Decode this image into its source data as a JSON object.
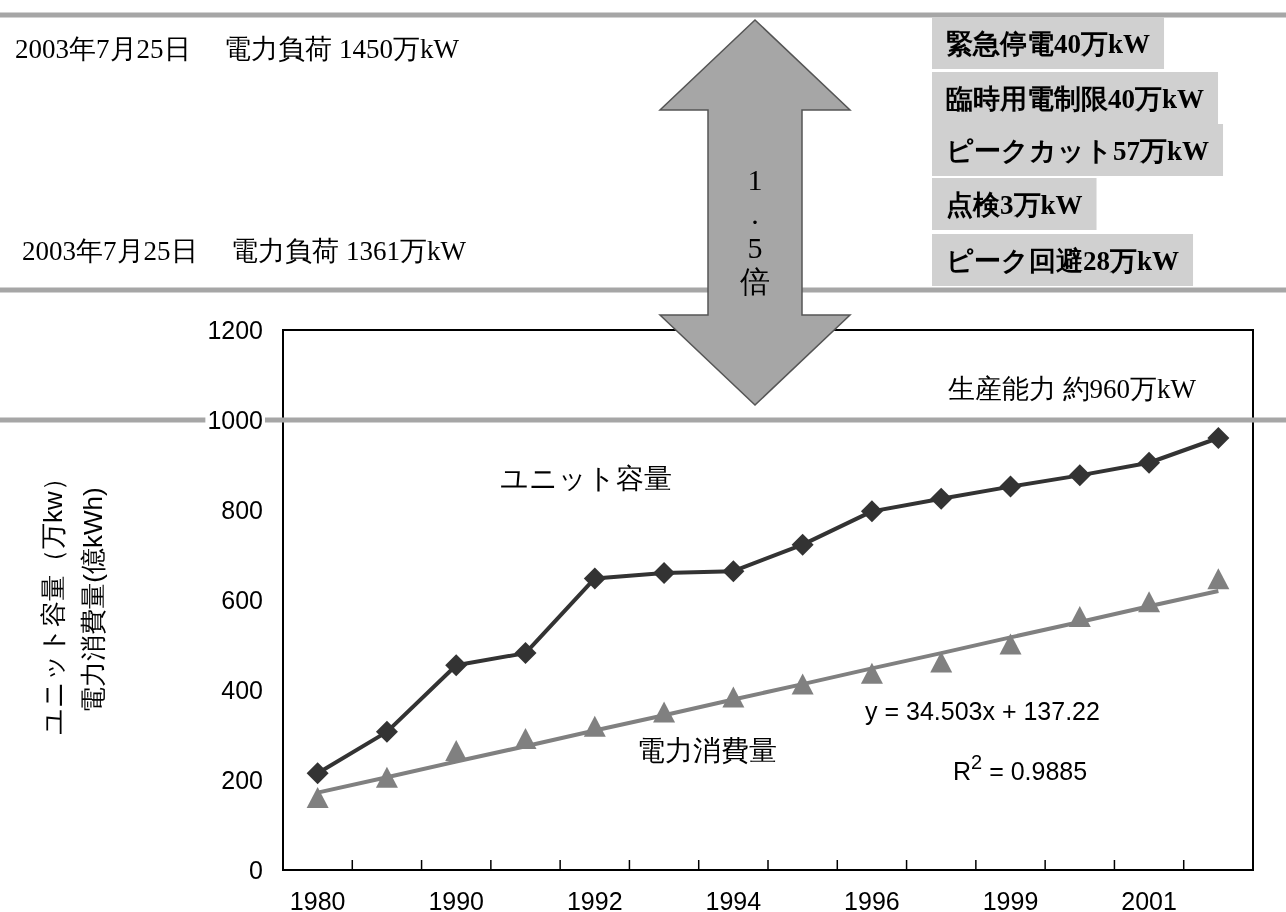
{
  "chart_data": {
    "type": "line",
    "ylabel": "電力消費量(億kWh)",
    "categories": [
      "1980",
      null,
      "1990",
      null,
      "1992",
      null,
      "1994",
      null,
      "1996",
      null,
      "1999",
      null,
      "2001",
      null
    ],
    "series": [
      {
        "name": "ユニット容量",
        "marker": "diamond",
        "color": "#333333",
        "values": [
          215,
          307,
          455,
          482,
          648,
          660,
          664,
          723,
          797,
          825,
          852,
          877,
          905,
          960
        ]
      },
      {
        "name": "電力消費量",
        "type": "scatter",
        "marker": "triangle",
        "color": "#808080",
        "values": [
          158,
          203,
          262,
          289,
          316,
          348,
          381,
          410,
          434,
          459,
          499,
          560,
          593,
          644
        ]
      },
      {
        "marker": "none",
        "color": "#808080",
        "values": [
          172,
          206,
          241,
          275,
          310,
          344,
          379,
          413,
          448,
          482,
          517,
          551,
          586,
          620
        ]
      }
    ],
    "ylim": [
      0,
      1200
    ],
    "yticks": [
      0,
      200,
      400,
      600,
      800,
      1000,
      1200
    ],
    "ref_lines": [
      {
        "axis": "y",
        "value": 1000,
        "color": "#a6a6a6"
      }
    ],
    "annotations": [
      "ユニット容量（万kw）",
      "2003年7月25日　 電力負荷  1450万kW",
      "2003年7月25日　 電力負荷  1361万kW",
      "1.5倍",
      "緊急停電40万kW",
      "臨時用電制限40万kW",
      "ピークカット57万kW",
      "点検3万kW",
      "ピーク回避28万kW",
      "生産能力  約960万kW",
      "y = 34.503x + 137.22",
      "R$^{2}$ = 0.9885"
    ],
    "legend": false,
    "grid": false
  }
}
